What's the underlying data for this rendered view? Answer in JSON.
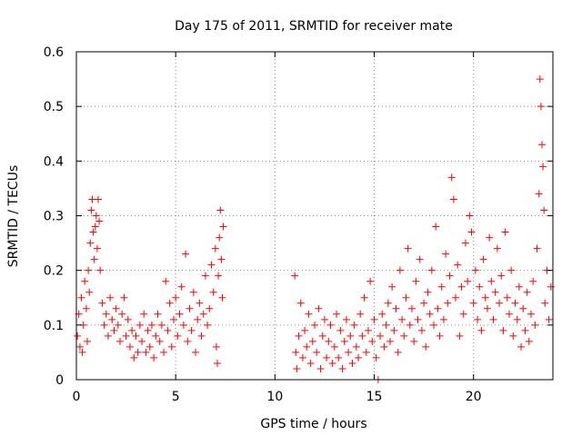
{
  "chart_data": {
    "type": "scatter",
    "title": "Day 175 of 2011, SRMTID for receiver mate",
    "xlabel": "GPS time / hours",
    "ylabel": "SRMTID / TECUs",
    "xlim": [
      0,
      24
    ],
    "ylim": [
      0,
      0.6
    ],
    "x_ticks": [
      0,
      5,
      10,
      15,
      20
    ],
    "x_tick_labels": [
      "0",
      "5",
      "10",
      "15",
      "20"
    ],
    "y_ticks": [
      0,
      0.1,
      0.2,
      0.3,
      0.4,
      0.5,
      0.6
    ],
    "y_tick_labels": [
      "0",
      "0.1",
      "0.2",
      "0.3",
      "0.4",
      "0.5",
      "0.6"
    ],
    "grid": true,
    "marker": "+",
    "series": [
      {
        "name": "SRMTID",
        "color": "#ff0000",
        "points": [
          [
            0.05,
            0.08
          ],
          [
            0.12,
            0.12
          ],
          [
            0.18,
            0.06
          ],
          [
            0.25,
            0.15
          ],
          [
            0.3,
            0.05
          ],
          [
            0.35,
            0.1
          ],
          [
            0.42,
            0.18
          ],
          [
            0.5,
            0.13
          ],
          [
            0.55,
            0.07
          ],
          [
            0.6,
            0.2
          ],
          [
            0.65,
            0.16
          ],
          [
            0.7,
            0.25
          ],
          [
            0.75,
            0.31
          ],
          [
            0.8,
            0.33
          ],
          [
            0.85,
            0.27
          ],
          [
            0.9,
            0.22
          ],
          [
            0.95,
            0.28
          ],
          [
            1.0,
            0.3
          ],
          [
            1.05,
            0.24
          ],
          [
            1.1,
            0.33
          ],
          [
            1.15,
            0.29
          ],
          [
            1.2,
            0.2
          ],
          [
            1.3,
            0.14
          ],
          [
            1.4,
            0.1
          ],
          [
            1.5,
            0.12
          ],
          [
            1.6,
            0.08
          ],
          [
            1.7,
            0.15
          ],
          [
            1.8,
            0.11
          ],
          [
            1.9,
            0.09
          ],
          [
            2.0,
            0.13
          ],
          [
            2.1,
            0.1
          ],
          [
            2.2,
            0.07
          ],
          [
            2.3,
            0.12
          ],
          [
            2.4,
            0.15
          ],
          [
            2.5,
            0.08
          ],
          [
            2.6,
            0.11
          ],
          [
            2.7,
            0.06
          ],
          [
            2.8,
            0.09
          ],
          [
            2.9,
            0.04
          ],
          [
            3.0,
            0.08
          ],
          [
            3.1,
            0.05
          ],
          [
            3.2,
            0.1
          ],
          [
            3.3,
            0.07
          ],
          [
            3.4,
            0.12
          ],
          [
            3.5,
            0.05
          ],
          [
            3.6,
            0.09
          ],
          [
            3.7,
            0.06
          ],
          [
            3.8,
            0.1
          ],
          [
            3.9,
            0.04
          ],
          [
            4.0,
            0.08
          ],
          [
            4.1,
            0.12
          ],
          [
            4.2,
            0.07
          ],
          [
            4.3,
            0.1
          ],
          [
            4.4,
            0.05
          ],
          [
            4.5,
            0.18
          ],
          [
            4.6,
            0.09
          ],
          [
            4.7,
            0.14
          ],
          [
            4.8,
            0.06
          ],
          [
            4.9,
            0.11
          ],
          [
            5.0,
            0.15
          ],
          [
            5.1,
            0.08
          ],
          [
            5.2,
            0.12
          ],
          [
            5.3,
            0.17
          ],
          [
            5.4,
            0.1
          ],
          [
            5.5,
            0.23
          ],
          [
            5.6,
            0.07
          ],
          [
            5.7,
            0.13
          ],
          [
            5.8,
            0.09
          ],
          [
            5.9,
            0.16
          ],
          [
            6.0,
            0.05
          ],
          [
            6.1,
            0.11
          ],
          [
            6.2,
            0.14
          ],
          [
            6.3,
            0.08
          ],
          [
            6.4,
            0.12
          ],
          [
            6.5,
            0.19
          ],
          [
            6.6,
            0.1
          ],
          [
            6.7,
            0.13
          ],
          [
            6.8,
            0.21
          ],
          [
            6.9,
            0.16
          ],
          [
            7.0,
            0.24
          ],
          [
            7.05,
            0.06
          ],
          [
            7.1,
            0.03
          ],
          [
            7.15,
            0.19
          ],
          [
            7.2,
            0.26
          ],
          [
            7.25,
            0.31
          ],
          [
            7.3,
            0.22
          ],
          [
            7.35,
            0.15
          ],
          [
            7.4,
            0.28
          ],
          [
            11.0,
            0.19
          ],
          [
            11.05,
            0.05
          ],
          [
            11.1,
            0.02
          ],
          [
            11.2,
            0.08
          ],
          [
            11.3,
            0.14
          ],
          [
            11.4,
            0.04
          ],
          [
            11.5,
            0.09
          ],
          [
            11.6,
            0.06
          ],
          [
            11.7,
            0.12
          ],
          [
            11.8,
            0.03
          ],
          [
            11.9,
            0.07
          ],
          [
            12.0,
            0.1
          ],
          [
            12.1,
            0.05
          ],
          [
            12.2,
            0.13
          ],
          [
            12.3,
            0.02
          ],
          [
            12.4,
            0.08
          ],
          [
            12.5,
            0.11
          ],
          [
            12.6,
            0.04
          ],
          [
            12.7,
            0.07
          ],
          [
            12.8,
            0.1
          ],
          [
            12.9,
            0.03
          ],
          [
            13.0,
            0.06
          ],
          [
            13.1,
            0.12
          ],
          [
            13.2,
            0.04
          ],
          [
            13.3,
            0.09
          ],
          [
            13.4,
            0.02
          ],
          [
            13.5,
            0.07
          ],
          [
            13.6,
            0.11
          ],
          [
            13.7,
            0.05
          ],
          [
            13.8,
            0.08
          ],
          [
            13.9,
            0.03
          ],
          [
            14.0,
            0.1
          ],
          [
            14.1,
            0.06
          ],
          [
            14.2,
            0.04
          ],
          [
            14.3,
            0.12
          ],
          [
            14.4,
            0.08
          ],
          [
            14.5,
            0.15
          ],
          [
            14.6,
            0.05
          ],
          [
            14.7,
            0.09
          ],
          [
            14.8,
            0.18
          ],
          [
            14.9,
            0.07
          ],
          [
            15.0,
            0.11
          ],
          [
            15.1,
            0.04
          ],
          [
            15.2,
            0.0
          ],
          [
            15.3,
            0.08
          ],
          [
            15.4,
            0.12
          ],
          [
            15.5,
            0.06
          ],
          [
            15.6,
            0.1
          ],
          [
            15.7,
            0.14
          ],
          [
            15.8,
            0.07
          ],
          [
            15.9,
            0.17
          ],
          [
            16.0,
            0.09
          ],
          [
            16.1,
            0.13
          ],
          [
            16.2,
            0.05
          ],
          [
            16.3,
            0.2
          ],
          [
            16.4,
            0.11
          ],
          [
            16.5,
            0.08
          ],
          [
            16.6,
            0.15
          ],
          [
            16.7,
            0.24
          ],
          [
            16.8,
            0.1
          ],
          [
            16.9,
            0.13
          ],
          [
            17.0,
            0.07
          ],
          [
            17.1,
            0.18
          ],
          [
            17.2,
            0.11
          ],
          [
            17.3,
            0.22
          ],
          [
            17.4,
            0.09
          ],
          [
            17.5,
            0.14
          ],
          [
            17.6,
            0.06
          ],
          [
            17.7,
            0.16
          ],
          [
            17.8,
            0.12
          ],
          [
            17.9,
            0.2
          ],
          [
            18.0,
            0.1
          ],
          [
            18.1,
            0.28
          ],
          [
            18.2,
            0.13
          ],
          [
            18.3,
            0.08
          ],
          [
            18.4,
            0.17
          ],
          [
            18.5,
            0.11
          ],
          [
            18.6,
            0.23
          ],
          [
            18.7,
            0.14
          ],
          [
            18.8,
            0.19
          ],
          [
            18.9,
            0.37
          ],
          [
            19.0,
            0.33
          ],
          [
            19.1,
            0.15
          ],
          [
            19.2,
            0.21
          ],
          [
            19.3,
            0.08
          ],
          [
            19.4,
            0.17
          ],
          [
            19.5,
            0.12
          ],
          [
            19.6,
            0.25
          ],
          [
            19.7,
            0.18
          ],
          [
            19.8,
            0.3
          ],
          [
            19.9,
            0.27
          ],
          [
            20.0,
            0.14
          ],
          [
            20.1,
            0.2
          ],
          [
            20.2,
            0.11
          ],
          [
            20.3,
            0.17
          ],
          [
            20.4,
            0.09
          ],
          [
            20.5,
            0.22
          ],
          [
            20.6,
            0.15
          ],
          [
            20.7,
            0.13
          ],
          [
            20.8,
            0.26
          ],
          [
            20.9,
            0.18
          ],
          [
            21.0,
            0.11
          ],
          [
            21.1,
            0.16
          ],
          [
            21.2,
            0.24
          ],
          [
            21.3,
            0.14
          ],
          [
            21.4,
            0.19
          ],
          [
            21.5,
            0.09
          ],
          [
            21.6,
            0.27
          ],
          [
            21.7,
            0.15
          ],
          [
            21.8,
            0.12
          ],
          [
            21.9,
            0.2
          ],
          [
            22.0,
            0.08
          ],
          [
            22.1,
            0.14
          ],
          [
            22.2,
            0.11
          ],
          [
            22.3,
            0.17
          ],
          [
            22.4,
            0.06
          ],
          [
            22.5,
            0.13
          ],
          [
            22.6,
            0.09
          ],
          [
            22.7,
            0.16
          ],
          [
            22.8,
            0.07
          ],
          [
            22.9,
            0.12
          ],
          [
            23.0,
            0.18
          ],
          [
            23.1,
            0.1
          ],
          [
            23.2,
            0.24
          ],
          [
            23.3,
            0.34
          ],
          [
            23.35,
            0.55
          ],
          [
            23.4,
            0.5
          ],
          [
            23.45,
            0.43
          ],
          [
            23.5,
            0.39
          ],
          [
            23.55,
            0.31
          ],
          [
            23.6,
            0.14
          ],
          [
            23.7,
            0.2
          ],
          [
            23.8,
            0.11
          ],
          [
            23.9,
            0.17
          ]
        ]
      }
    ]
  }
}
